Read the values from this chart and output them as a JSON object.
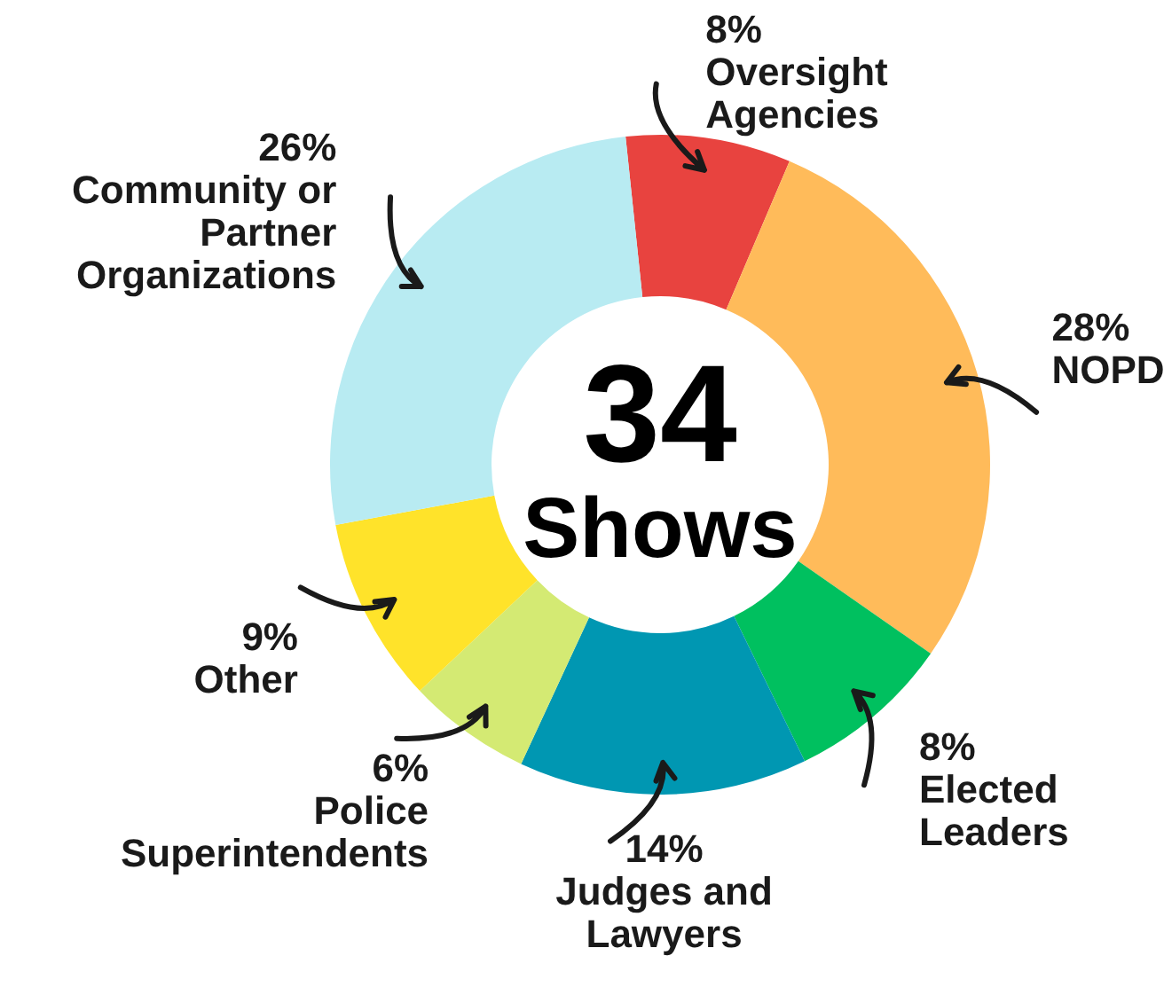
{
  "chart_data": {
    "type": "donut",
    "annotations": [
      "34",
      "Shows"
    ],
    "categories": [
      "Oversight Agencies",
      "NOPD",
      "Elected Leaders",
      "Judges and Lawyers",
      "Police Superintendents",
      "Other",
      "Community or Partner Organizations"
    ],
    "values": [
      8,
      28,
      8,
      14,
      6,
      9,
      26
    ],
    "value_labels": [
      "8%",
      "28%",
      "8%",
      "14%",
      "6%",
      "9%",
      "26%"
    ],
    "colors": [
      "#e8433f",
      "#ffbb5a",
      "#00c05f",
      "#0097b2",
      "#d4ea73",
      "#ffe32a",
      "#b8ebf2"
    ]
  }
}
